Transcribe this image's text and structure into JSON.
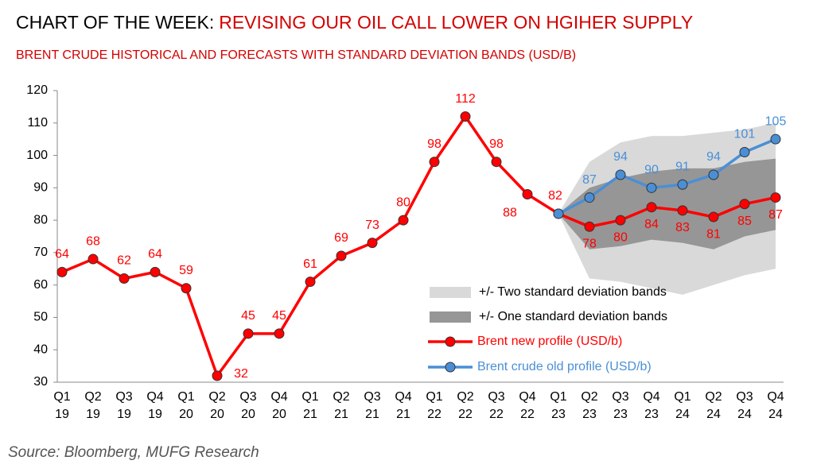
{
  "chart_data": {
    "type": "line",
    "title": "CHART OF THE WEEK:",
    "title_highlight": "REVISING OUR OIL CALL LOWER ON HGIHER SUPPLY",
    "subtitle": "BRENT CRUDE HISTORICAL AND FORECASTS WITH STANDARD DEVIATION BANDS (USD/B)",
    "source": "Source: Bloomberg, MUFG Research",
    "categories": [
      [
        "Q1",
        "19"
      ],
      [
        "Q2",
        "19"
      ],
      [
        "Q3",
        "19"
      ],
      [
        "Q4",
        "19"
      ],
      [
        "Q1",
        "20"
      ],
      [
        "Q2",
        "20"
      ],
      [
        "Q3",
        "20"
      ],
      [
        "Q4",
        "20"
      ],
      [
        "Q1",
        "21"
      ],
      [
        "Q2",
        "21"
      ],
      [
        "Q3",
        "21"
      ],
      [
        "Q4",
        "21"
      ],
      [
        "Q1",
        "22"
      ],
      [
        "Q2",
        "22"
      ],
      [
        "Q3",
        "22"
      ],
      [
        "Q4",
        "22"
      ],
      [
        "Q1",
        "23"
      ],
      [
        "Q2",
        "23"
      ],
      [
        "Q3",
        "23"
      ],
      [
        "Q4",
        "23"
      ],
      [
        "Q1",
        "24"
      ],
      [
        "Q2",
        "24"
      ],
      [
        "Q3",
        "24"
      ],
      [
        "Q4",
        "24"
      ]
    ],
    "ylim": [
      30,
      120
    ],
    "yticks": [
      30,
      40,
      50,
      60,
      70,
      80,
      90,
      100,
      110,
      120
    ],
    "grid": false,
    "legend": "lower right",
    "bands": [
      {
        "name": "+/- Two standard deviation bands",
        "color": "#d9d9d9",
        "start": 16,
        "upper": [
          82,
          98,
          104,
          106,
          106,
          107,
          108,
          110
        ],
        "lower": [
          82,
          62,
          61,
          59,
          57,
          60,
          63,
          65
        ]
      },
      {
        "name": "+/- One standard deviation bands",
        "color": "#969696",
        "start": 16,
        "upper": [
          82,
          90,
          93,
          95,
          96,
          96,
          98,
          99
        ],
        "lower": [
          82,
          71,
          72,
          74,
          73,
          71,
          75,
          77
        ]
      }
    ],
    "series": [
      {
        "name": "Brent new profile (USD/b)",
        "color": "#ff0000",
        "values": [
          64,
          68,
          62,
          64,
          59,
          32,
          45,
          45,
          61,
          69,
          73,
          80,
          98,
          112,
          98,
          88,
          82,
          78,
          80,
          84,
          83,
          81,
          85,
          87
        ]
      },
      {
        "name": "Brent crude old profile (USD/b)",
        "color": "#4a8fd6",
        "values": [
          null,
          null,
          null,
          null,
          null,
          null,
          null,
          null,
          null,
          null,
          null,
          null,
          null,
          null,
          null,
          null,
          82,
          87,
          94,
          90,
          91,
          94,
          101,
          105
        ],
        "value_labels": [
          null,
          null,
          null,
          null,
          null,
          null,
          null,
          null,
          null,
          null,
          null,
          null,
          null,
          null,
          null,
          null,
          null,
          "87",
          "94",
          "90",
          "91",
          "94",
          "101",
          "105"
        ]
      }
    ]
  }
}
